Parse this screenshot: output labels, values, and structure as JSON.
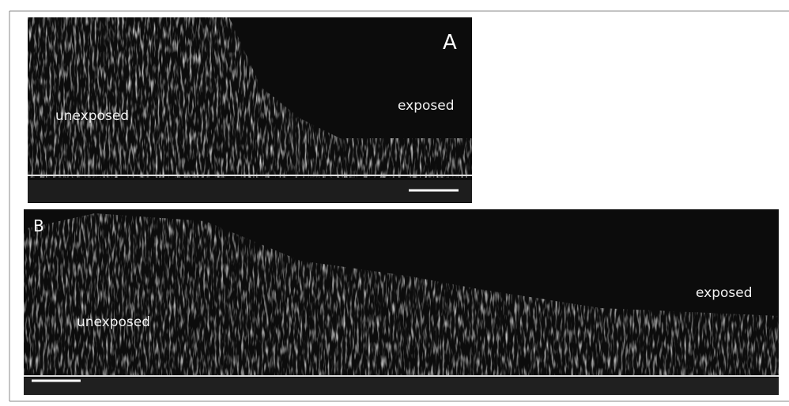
{
  "panels": [
    {
      "label": "A",
      "left_label": "unexposed",
      "right_label": "exposed"
    },
    {
      "label": "B",
      "left_label": "unexposed",
      "right_label": "exposed"
    }
  ]
}
